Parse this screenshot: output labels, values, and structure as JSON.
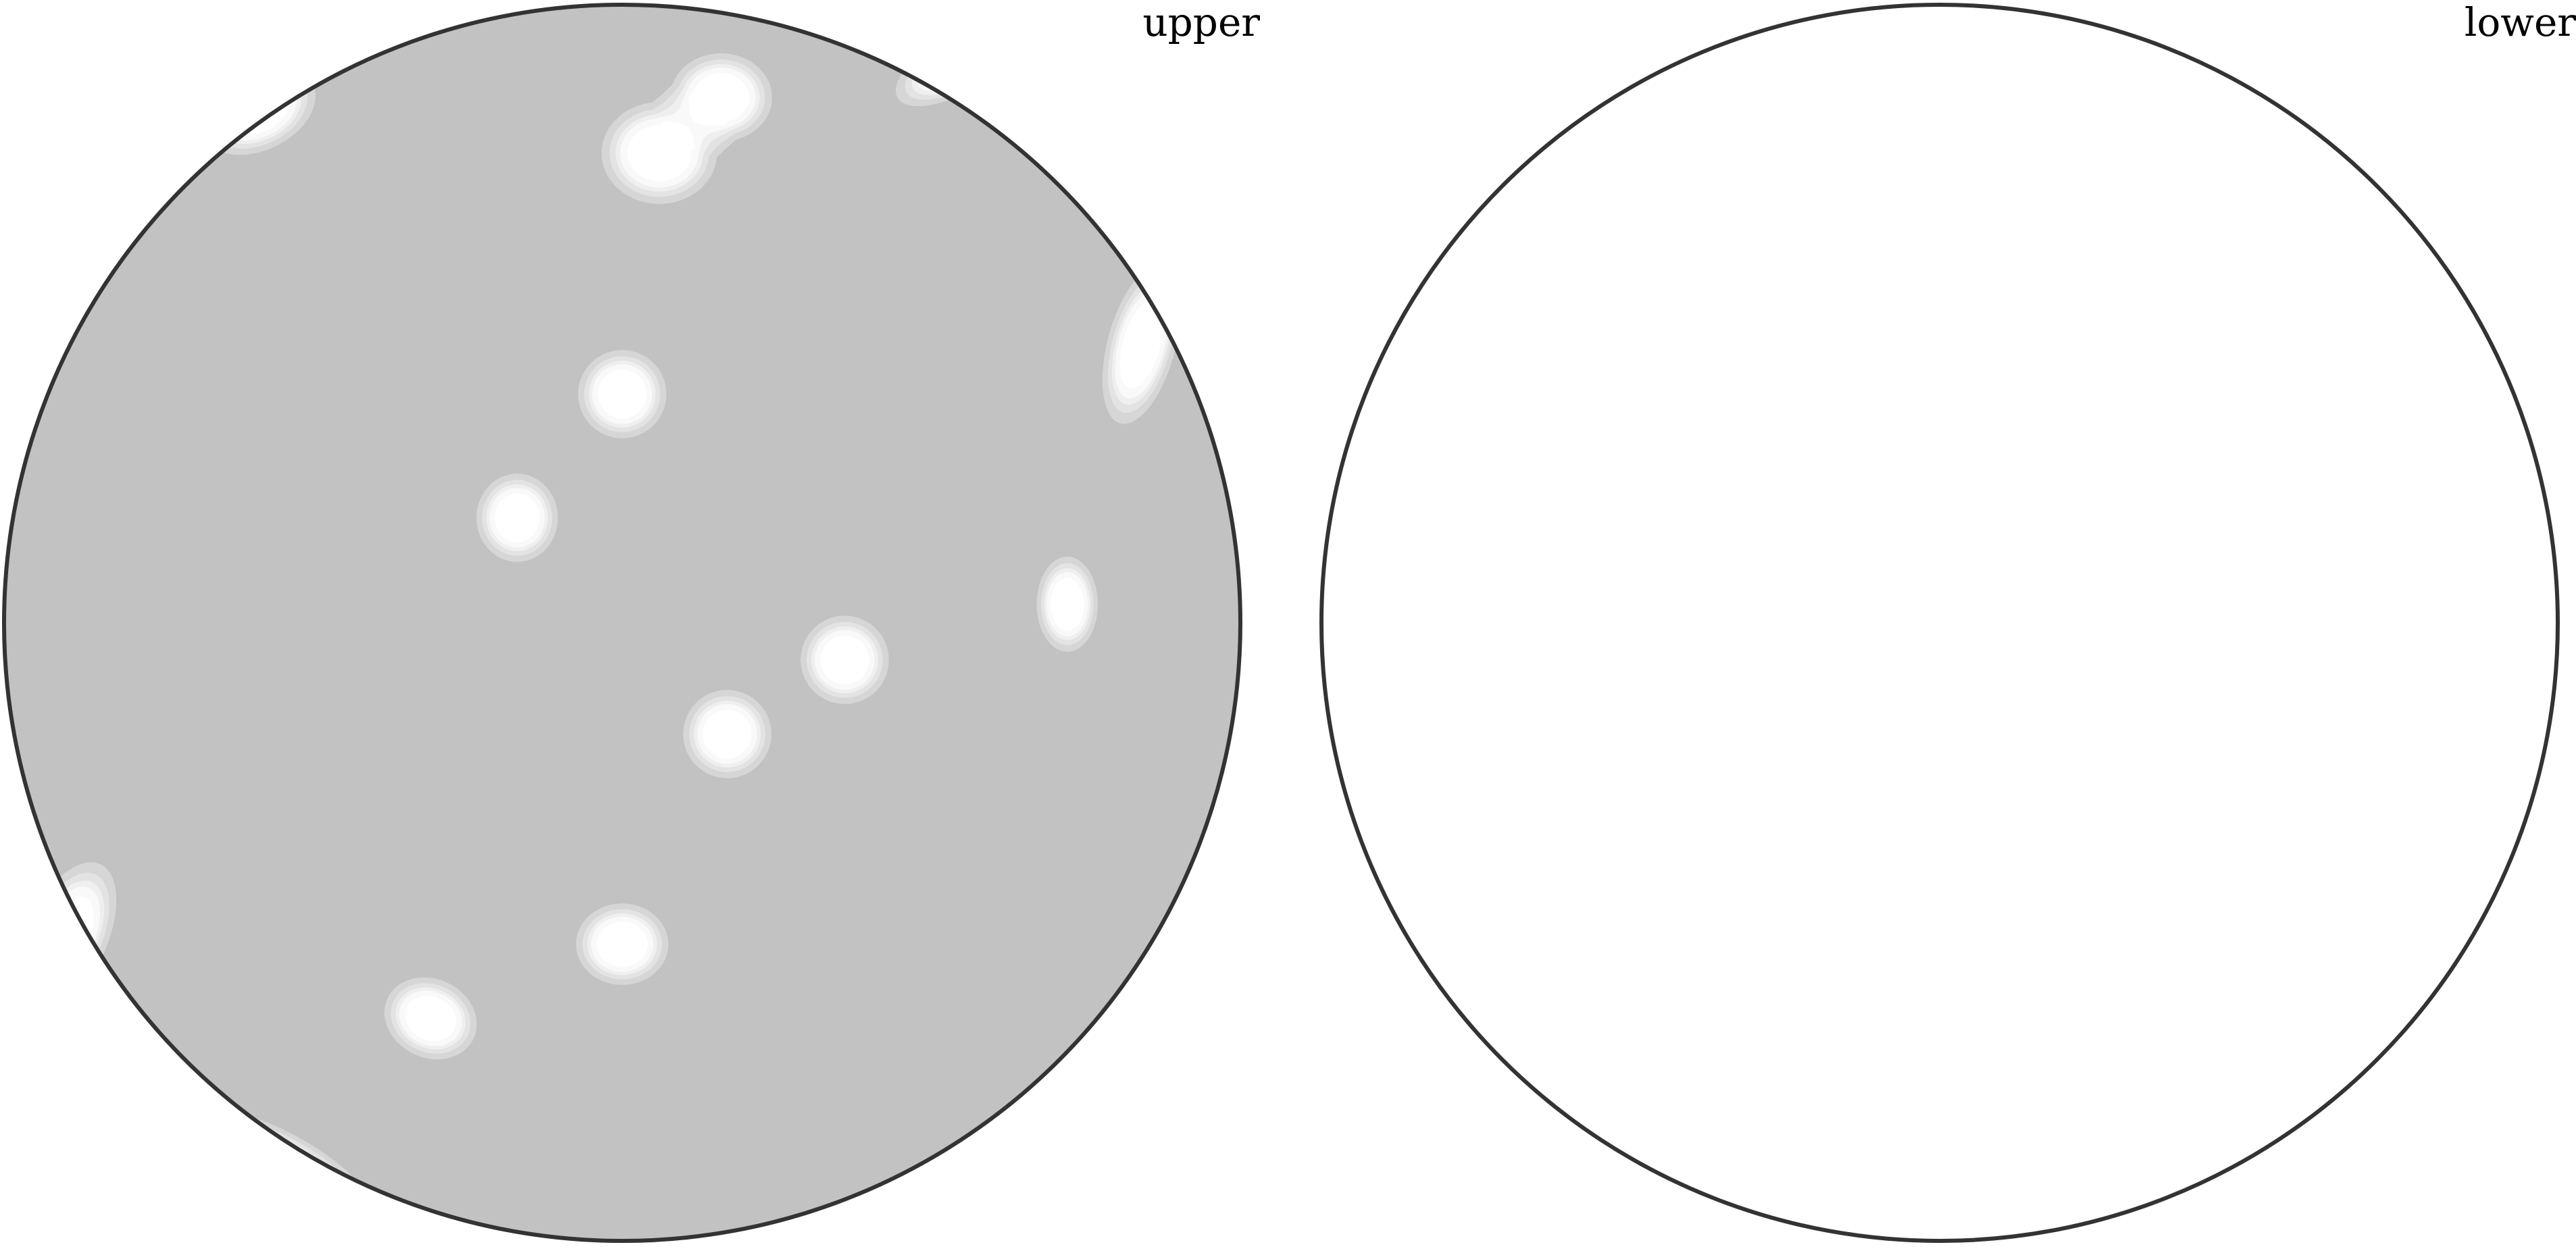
{
  "chart_data": {
    "type": "pole_figure",
    "title": "",
    "colors": {
      "background": "#8a8a8a",
      "outline": "#333333",
      "empty": "#ffffff",
      "levels": [
        "#ababab",
        "#c4c4c4",
        "#dcdcdc",
        "#f2f2f2",
        "#ffffff"
      ]
    },
    "hemispheres": [
      {
        "label": "upper",
        "filled": true,
        "peaks": [
          {
            "x": -0.59,
            "y": 0.83,
            "sx": 0.09,
            "sy": 0.06,
            "rot": -25,
            "intensity": 1.0
          },
          {
            "x": 0.06,
            "y": 0.76,
            "sx": 0.085,
            "sy": 0.075,
            "rot": 0,
            "intensity": 1.0
          },
          {
            "x": 0.16,
            "y": 0.85,
            "sx": 0.075,
            "sy": 0.065,
            "rot": 0,
            "intensity": 1.0
          },
          {
            "x": 0.55,
            "y": 0.91,
            "sx": 0.11,
            "sy": 0.045,
            "rot": -30,
            "intensity": 1.0
          },
          {
            "x": 0.84,
            "y": 0.45,
            "sx": 0.05,
            "sy": 0.12,
            "rot": 15,
            "intensity": 1.0
          },
          {
            "x": 0.0,
            "y": 0.37,
            "sx": 0.065,
            "sy": 0.065,
            "rot": 0,
            "intensity": 1.0
          },
          {
            "x": -0.17,
            "y": 0.17,
            "sx": 0.06,
            "sy": 0.065,
            "rot": 0,
            "intensity": 1.0
          },
          {
            "x": 0.72,
            "y": 0.03,
            "sx": 0.045,
            "sy": 0.07,
            "rot": 0,
            "intensity": 1.0
          },
          {
            "x": 0.36,
            "y": -0.06,
            "sx": 0.065,
            "sy": 0.065,
            "rot": 0,
            "intensity": 1.0
          },
          {
            "x": 0.17,
            "y": -0.18,
            "sx": 0.065,
            "sy": 0.065,
            "rot": 0,
            "intensity": 1.0
          },
          {
            "x": 0.0,
            "y": -0.52,
            "sx": 0.068,
            "sy": 0.06,
            "rot": 0,
            "intensity": 1.0
          },
          {
            "x": -0.31,
            "y": -0.64,
            "sx": 0.07,
            "sy": 0.058,
            "rot": 25,
            "intensity": 1.0
          },
          {
            "x": -0.9,
            "y": -0.51,
            "sx": 0.06,
            "sy": 0.12,
            "rot": 25,
            "intensity": 1.0
          },
          {
            "x": -0.54,
            "y": -0.88,
            "sx": 0.14,
            "sy": 0.045,
            "rot": 30,
            "intensity": 1.0
          }
        ]
      },
      {
        "label": "lower",
        "filled": false,
        "peaks": []
      }
    ]
  }
}
